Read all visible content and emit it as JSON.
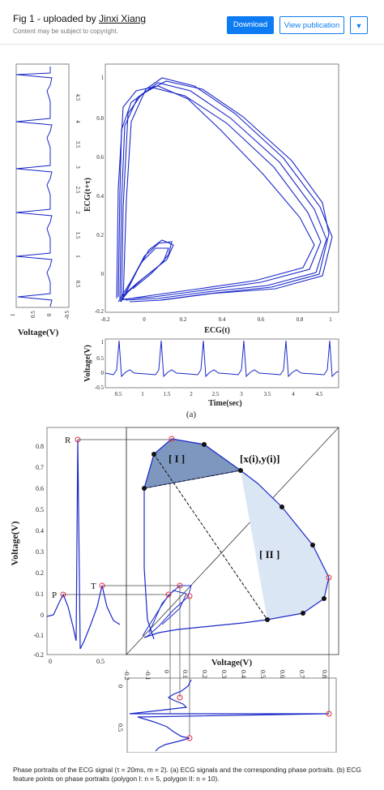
{
  "header": {
    "fig_prefix": "Fig 1 - uploaded by ",
    "uploader": "Jinxi Xiang",
    "notice": "Content may be subject to copyright.",
    "download_label": "Download",
    "view_publication_label": "View publication",
    "more_icon": "chevron-down-icon"
  },
  "figure": {
    "panel_a": {
      "label": "(a)",
      "left_plot": {
        "xlabel": "Voltage(V)",
        "xticks": [
          "1",
          "0.5",
          "0",
          "-0.5"
        ],
        "yticks": [
          "0.5",
          "1",
          "1.5",
          "2",
          "2.5",
          "3",
          "3.5",
          "4",
          "4.5"
        ]
      },
      "phase_plot": {
        "xlabel": "ECG(t)",
        "ylabel": "ECG(t+τ)",
        "xticks": [
          "-0.2",
          "0",
          "0.2",
          "0.4",
          "0.6",
          "0.8",
          "1"
        ],
        "yticks": [
          "-0.2",
          "0",
          "0.2",
          "0.4",
          "0.6",
          "0.8",
          "1"
        ]
      },
      "time_plot": {
        "xlabel": "Time(sec)",
        "ylabel": "Voltage(V)",
        "xticks": [
          "0.5",
          "1",
          "1.5",
          "2",
          "2.5",
          "3",
          "3.5",
          "4",
          "4.5"
        ],
        "yticks": [
          "1",
          "0.5",
          "0",
          "-0.5"
        ]
      }
    },
    "panel_b": {
      "ecg_plot": {
        "ylabel": "Voltage(V)",
        "yticks": [
          "0.8",
          "0.7",
          "0.6",
          "0.5",
          "0.4",
          "0.3",
          "0.2",
          "0.1",
          "0",
          "-0.1",
          "-0.2"
        ],
        "xticks": [
          "0",
          "0.5"
        ],
        "labels": {
          "R": "R",
          "P": "P",
          "T": "T"
        }
      },
      "phase_plot": {
        "xlabel": "Voltage(V)",
        "xticks": [
          "0",
          "0.1",
          "0.2",
          "0.3",
          "0.4",
          "0.5",
          "0.6",
          "0.7",
          "0.8"
        ],
        "polygon_1": "[ I ]",
        "polygon_2": "[ II ]",
        "point_label": "[x(i),y(i)]"
      },
      "bottom_plot": {
        "xticks": [
          "-0.2",
          "-0.1",
          "0",
          "0.1",
          "0.2",
          "0.3",
          "0.4",
          "0.5",
          "0.6",
          "0.7",
          "0.8"
        ],
        "yticks": [
          "0",
          "0.5"
        ]
      }
    }
  },
  "caption": "Phase portraits of the ECG signal (τ = 20ms, m = 2). (a) ECG signals and the corresponding phase portraits. (b) ECG feature points on phase portraits (polygon I: n = 5, polygon II: n = 10).",
  "colors": {
    "accent": "#0d7cf2",
    "trace": "#1a28c8",
    "poly1": "#7e97bf",
    "poly2": "#dbe6f5",
    "marker": "#e0303a"
  }
}
